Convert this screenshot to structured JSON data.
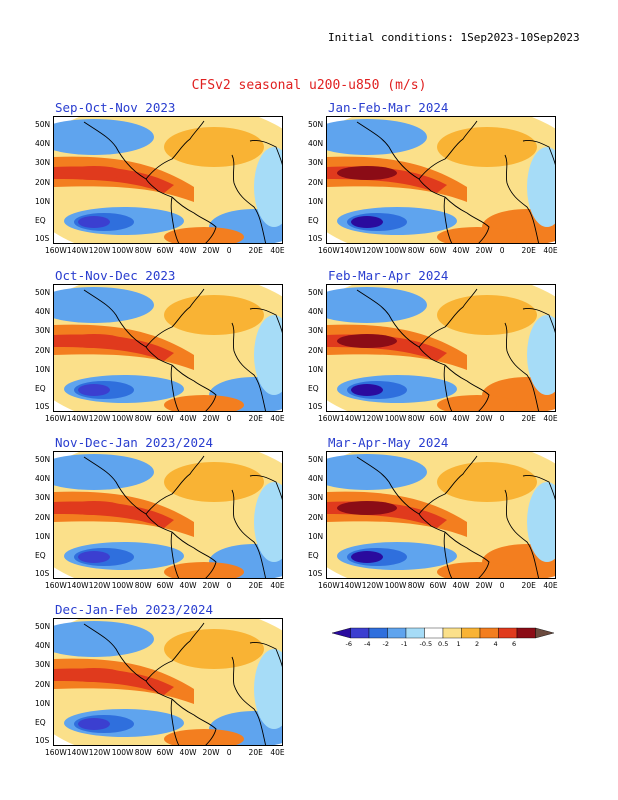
{
  "header": {
    "initial_conditions": "Initial conditions: 1Sep2023-10Sep2023"
  },
  "title": "CFSv2 seasonal u200-u850 (m/s)",
  "panels": [
    {
      "title": "Sep-Oct-Nov 2023"
    },
    {
      "title": "Oct-Nov-Dec 2023"
    },
    {
      "title": "Nov-Dec-Jan 2023/2024"
    },
    {
      "title": "Dec-Jan-Feb 2023/2024"
    },
    {
      "title": "Jan-Feb-Mar 2024"
    },
    {
      "title": "Feb-Mar-Apr 2024"
    },
    {
      "title": "Mar-Apr-May 2024"
    }
  ],
  "axes": {
    "y_ticks": [
      "50N",
      "40N",
      "30N",
      "20N",
      "10N",
      "EQ",
      "10S"
    ],
    "x_ticks": [
      "160W",
      "140W",
      "120W",
      "100W",
      "80W",
      "60W",
      "40W",
      "20W",
      "0",
      "20E",
      "40E"
    ]
  },
  "colorbar": {
    "labels": [
      "-6",
      "-4",
      "-2",
      "-1",
      "-0.5",
      "0.5",
      "1",
      "2",
      "4",
      "6"
    ],
    "colors": [
      "#2a0b9e",
      "#3b3fd0",
      "#2f6fdd",
      "#5fa4ee",
      "#a6dcf7",
      "#ffffff",
      "#fbe08a",
      "#f9b334",
      "#f37e1f",
      "#e03a1d",
      "#8b0c16",
      "#6b4a3e"
    ]
  }
}
